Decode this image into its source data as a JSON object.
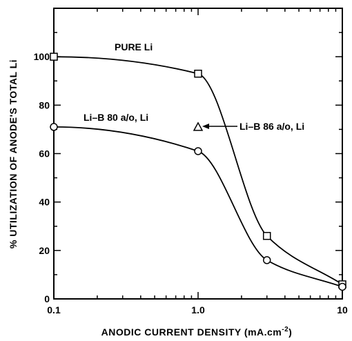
{
  "chart_data": {
    "type": "line",
    "title": "",
    "xlabel": "ANODIC CURRENT DENSITY (mA.cm",
    "xlabel_superscript": "-2",
    "xlabel_suffix": ")",
    "ylabel": "% UTILIZATION OF ANODE'S TOTAL Li",
    "x_scale": "log",
    "xlim": [
      0.1,
      10
    ],
    "ylim": [
      0,
      120
    ],
    "x_ticks": [
      "0.1",
      "1.0",
      "10"
    ],
    "y_ticks": [
      "0",
      "20",
      "40",
      "60",
      "80",
      "100"
    ],
    "grid": false,
    "series": [
      {
        "name": "PURE Li",
        "marker": "square",
        "x": [
          0.1,
          1.0,
          3.0,
          10
        ],
        "y": [
          100,
          93,
          26,
          6
        ]
      },
      {
        "name": "Li–B 80 a/o, Li",
        "marker": "circle",
        "x": [
          0.1,
          1.0,
          3.0,
          10
        ],
        "y": [
          71,
          61,
          16,
          5
        ]
      },
      {
        "name": "Li–B 86 a/o, Li",
        "marker": "triangle",
        "x": [
          1.0
        ],
        "y": [
          71
        ]
      }
    ],
    "annotations": [
      {
        "text": "PURE Li"
      },
      {
        "text": "Li–B 80 a/o, Li"
      },
      {
        "text": "Li–B 86 a/o, Li"
      }
    ]
  }
}
